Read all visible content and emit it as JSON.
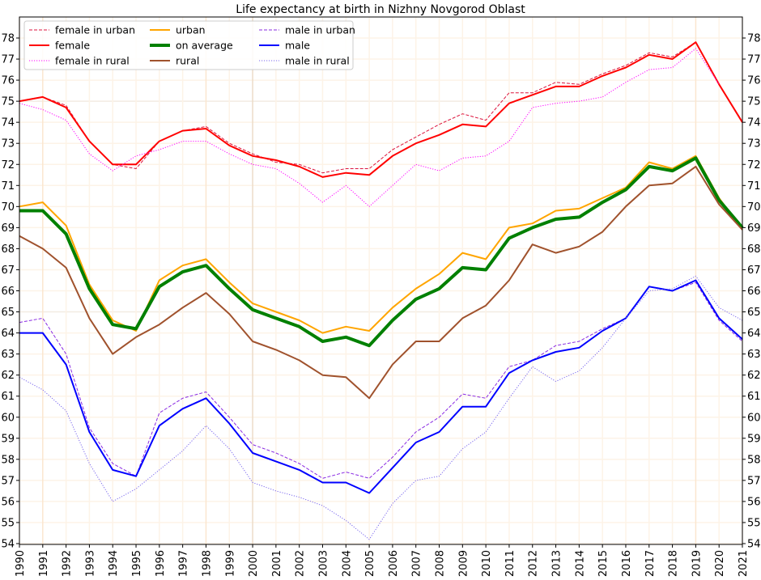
{
  "chart_data": {
    "type": "line",
    "title": "Life expectancy at birth in Nizhny Novgorod Oblast",
    "xlabel": "",
    "ylabel": "",
    "xlim": [
      1990,
      2021
    ],
    "ylim": [
      54,
      79
    ],
    "grid": true,
    "legend_position": "top-left",
    "x": [
      1990,
      1991,
      1992,
      1993,
      1994,
      1995,
      1996,
      1997,
      1998,
      1999,
      2000,
      2001,
      2002,
      2003,
      2004,
      2005,
      2006,
      2007,
      2008,
      2009,
      2010,
      2011,
      2012,
      2013,
      2014,
      2015,
      2016,
      2017,
      2018,
      2019,
      2020,
      2021
    ],
    "x_tick_labels": [
      "1990",
      "1991",
      "1992",
      "1993",
      "1994",
      "1995",
      "1996",
      "1997",
      "1998",
      "1999",
      "2000",
      "2001",
      "2002",
      "2003",
      "2004",
      "2005",
      "2006",
      "2007",
      "2008",
      "2009",
      "2010",
      "2011",
      "2012",
      "2013",
      "2014",
      "2015",
      "2016",
      "2017",
      "2018",
      "2019",
      "2020",
      "2021"
    ],
    "y_ticks": [
      54,
      55,
      56,
      57,
      58,
      59,
      60,
      61,
      62,
      63,
      64,
      65,
      66,
      67,
      68,
      69,
      70,
      71,
      72,
      73,
      74,
      75,
      76,
      77,
      78
    ],
    "y_tick_labels": [
      "54",
      "55",
      "56",
      "57",
      "58",
      "59",
      "60",
      "61",
      "62",
      "63",
      "64",
      "65",
      "66",
      "67",
      "68",
      "69",
      "70",
      "71",
      "72",
      "73",
      "74",
      "75",
      "76",
      "77",
      "78"
    ],
    "highlight_years": [
      1991,
      1998,
      2000,
      2019
    ],
    "series": [
      {
        "name": "female in urban",
        "color": "#dc143c",
        "style": "dashed",
        "width": 1,
        "values": [
          75.0,
          75.2,
          74.8,
          73.1,
          72.0,
          71.8,
          73.1,
          73.6,
          73.8,
          73.0,
          72.5,
          72.1,
          72.0,
          71.6,
          71.8,
          71.8,
          72.7,
          73.3,
          73.9,
          74.4,
          74.1,
          75.4,
          75.4,
          75.9,
          75.8,
          76.3,
          76.7,
          77.3,
          77.1,
          77.8,
          75.8,
          null
        ]
      },
      {
        "name": "female",
        "color": "#ff0000",
        "style": "solid",
        "width": 2,
        "values": [
          75.0,
          75.2,
          74.7,
          73.1,
          72.0,
          72.0,
          73.1,
          73.6,
          73.7,
          72.9,
          72.4,
          72.2,
          71.9,
          71.4,
          71.6,
          71.5,
          72.4,
          73.0,
          73.4,
          73.9,
          73.8,
          74.9,
          75.3,
          75.7,
          75.7,
          76.2,
          76.6,
          77.2,
          77.0,
          77.8,
          75.8,
          74.0
        ]
      },
      {
        "name": "female in rural",
        "color": "#ff00ff",
        "style": "dotted",
        "width": 1,
        "values": [
          74.9,
          74.6,
          74.1,
          72.5,
          71.7,
          72.4,
          72.7,
          73.1,
          73.1,
          72.5,
          72.0,
          71.8,
          71.1,
          70.2,
          71.0,
          70.0,
          71.0,
          72.0,
          71.7,
          72.3,
          72.4,
          73.1,
          74.7,
          74.9,
          75.0,
          75.2,
          75.9,
          76.5,
          76.6,
          77.5,
          75.8,
          null
        ]
      },
      {
        "name": "urban",
        "color": "#ffa500",
        "style": "solid",
        "width": 2,
        "values": [
          70.0,
          70.2,
          69.1,
          66.3,
          64.6,
          64.1,
          66.5,
          67.2,
          67.5,
          66.4,
          65.4,
          65.0,
          64.6,
          64.0,
          64.3,
          64.1,
          65.2,
          66.1,
          66.8,
          67.8,
          67.5,
          69.0,
          69.2,
          69.8,
          69.9,
          70.4,
          70.9,
          72.1,
          71.8,
          72.4,
          70.4,
          68.9
        ]
      },
      {
        "name": "on average",
        "color": "#008000",
        "style": "solid",
        "width": 4,
        "values": [
          69.8,
          69.8,
          68.7,
          66.1,
          64.4,
          64.2,
          66.2,
          66.9,
          67.2,
          66.1,
          65.1,
          64.7,
          64.3,
          63.6,
          63.8,
          63.4,
          64.6,
          65.6,
          66.1,
          67.1,
          67.0,
          68.5,
          69.0,
          69.4,
          69.5,
          70.2,
          70.8,
          71.9,
          71.7,
          72.3,
          70.3,
          69.0
        ]
      },
      {
        "name": "rural",
        "color": "#a0522d",
        "style": "solid",
        "width": 2,
        "values": [
          68.6,
          68.0,
          67.1,
          64.7,
          63.0,
          63.8,
          64.4,
          65.2,
          65.9,
          64.9,
          63.6,
          63.2,
          62.7,
          62.0,
          61.9,
          60.9,
          62.5,
          63.6,
          63.6,
          64.7,
          65.3,
          66.5,
          68.2,
          67.8,
          68.1,
          68.8,
          70.0,
          71.0,
          71.1,
          71.9,
          70.1,
          68.9
        ]
      },
      {
        "name": "male in urban",
        "color": "#8a2be2",
        "style": "dashed",
        "width": 1,
        "values": [
          64.5,
          64.7,
          63.0,
          59.5,
          57.8,
          57.2,
          60.2,
          60.9,
          61.2,
          60.0,
          58.7,
          58.3,
          57.8,
          57.1,
          57.4,
          57.1,
          58.1,
          59.3,
          60.0,
          61.1,
          60.9,
          62.4,
          62.7,
          63.4,
          63.6,
          64.2,
          64.7,
          66.2,
          66.0,
          66.4,
          64.6,
          63.6
        ]
      },
      {
        "name": "male",
        "color": "#0000ff",
        "style": "solid",
        "width": 2,
        "values": [
          64.0,
          64.0,
          62.5,
          59.3,
          57.5,
          57.2,
          59.6,
          60.4,
          60.9,
          59.7,
          58.3,
          57.9,
          57.5,
          56.9,
          56.9,
          56.4,
          57.6,
          58.8,
          59.3,
          60.5,
          60.5,
          62.1,
          62.7,
          63.1,
          63.3,
          64.1,
          64.7,
          66.2,
          66.0,
          66.5,
          64.7,
          63.7
        ]
      },
      {
        "name": "male in rural",
        "color": "#7b68ee",
        "style": "dotted",
        "width": 1,
        "values": [
          61.9,
          61.3,
          60.3,
          57.8,
          56.0,
          56.6,
          57.5,
          58.4,
          59.6,
          58.5,
          56.9,
          56.5,
          56.2,
          55.8,
          55.1,
          54.2,
          55.9,
          57.0,
          57.2,
          58.5,
          59.3,
          60.9,
          62.4,
          61.7,
          62.2,
          63.3,
          64.7,
          66.0,
          66.1,
          66.7,
          65.2,
          64.6
        ]
      }
    ],
    "legend_order": [
      "female in urban",
      "female",
      "female in rural",
      "urban",
      "on average",
      "rural",
      "male in urban",
      "male",
      "male in rural"
    ]
  }
}
